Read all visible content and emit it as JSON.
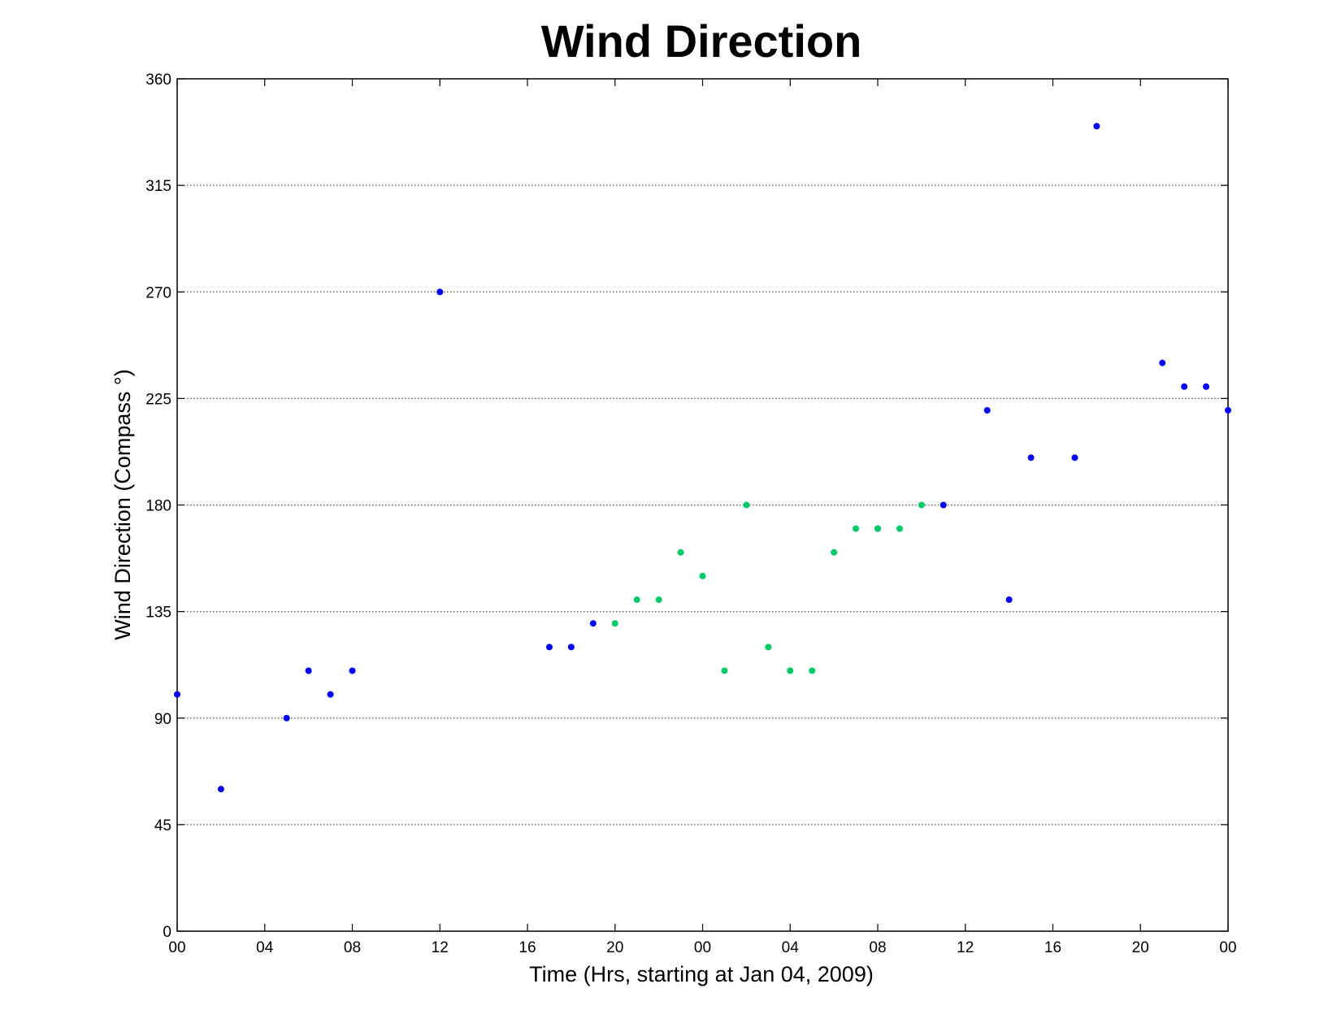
{
  "chart_data": {
    "type": "scatter",
    "title": "Wind Direction",
    "xlabel": "Time (Hrs, starting at Jan 04, 2009)",
    "ylabel": "Wind Direction (Compass  °)",
    "xlim": [
      "2009-01-04 00:00",
      "2009-01-06 00:00"
    ],
    "ylim": [
      0,
      360
    ],
    "x_ticks": [
      "00",
      "04",
      "08",
      "12",
      "16",
      "20",
      "00",
      "04",
      "08",
      "12",
      "16",
      "20",
      "00"
    ],
    "y_ticks": [
      0,
      45,
      90,
      135,
      180,
      225,
      270,
      315,
      360
    ],
    "grid": "horizontal dotted",
    "colors": {
      "blue": "#0000ff",
      "green": "#00cc66",
      "grid": "#555555",
      "axes": "#000000"
    },
    "series": [
      {
        "color": "#0000ff",
        "points": [
          [
            "2009-01-04 00:00",
            100
          ],
          [
            "2009-01-04 02:00",
            60
          ],
          [
            "2009-01-04 05:00",
            90
          ],
          [
            "2009-01-04 06:00",
            110
          ],
          [
            "2009-01-04 07:00",
            100
          ],
          [
            "2009-01-04 08:00",
            110
          ],
          [
            "2009-01-04 12:00",
            270
          ],
          [
            "2009-01-04 17:00",
            120
          ],
          [
            "2009-01-04 18:00",
            120
          ],
          [
            "2009-01-04 19:00",
            130
          ],
          [
            "2009-01-05 08:00",
            170
          ],
          [
            "2009-01-05 11:00",
            180
          ],
          [
            "2009-01-05 13:00",
            220
          ],
          [
            "2009-01-05 14:00",
            140
          ],
          [
            "2009-01-05 15:00",
            200
          ],
          [
            "2009-01-05 17:00",
            200
          ],
          [
            "2009-01-05 18:00",
            340
          ],
          [
            "2009-01-05 21:00",
            240
          ],
          [
            "2009-01-05 22:00",
            230
          ],
          [
            "2009-01-05 23:00",
            230
          ],
          [
            "2009-01-06 00:00",
            220
          ]
        ]
      },
      {
        "color": "#00cc66",
        "points": [
          [
            "2009-01-04 20:00",
            130
          ],
          [
            "2009-01-04 21:00",
            140
          ],
          [
            "2009-01-04 22:00",
            140
          ],
          [
            "2009-01-04 23:00",
            160
          ],
          [
            "2009-01-05 00:00",
            150
          ],
          [
            "2009-01-05 01:00",
            110
          ],
          [
            "2009-01-05 02:00",
            180
          ],
          [
            "2009-01-05 03:00",
            120
          ],
          [
            "2009-01-05 04:00",
            110
          ],
          [
            "2009-01-05 05:00",
            110
          ],
          [
            "2009-01-05 06:00",
            160
          ],
          [
            "2009-01-05 07:00",
            170
          ],
          [
            "2009-01-05 08:00",
            170
          ],
          [
            "2009-01-05 09:00",
            170
          ],
          [
            "2009-01-05 10:00",
            180
          ]
        ]
      }
    ]
  }
}
